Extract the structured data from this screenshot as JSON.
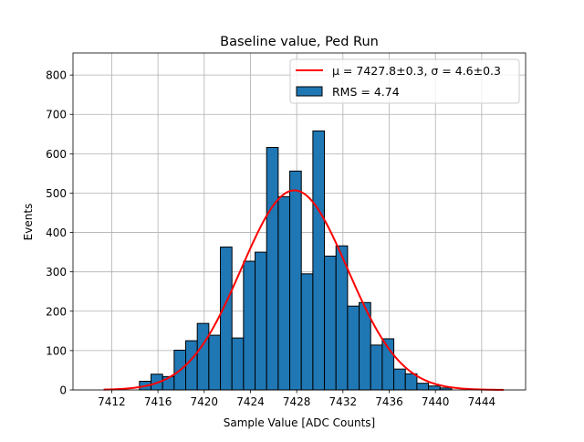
{
  "chart_data": {
    "type": "bar",
    "title": "Baseline value, Ped Run",
    "xlabel": "Sample Value [ADC Counts]",
    "ylabel": "Events",
    "xlim": [
      7408.65,
      7447.8
    ],
    "ylim": [
      0,
      856
    ],
    "grid": true,
    "xticks": [
      7412,
      7416,
      7420,
      7424,
      7428,
      7432,
      7436,
      7440,
      7444
    ],
    "yticks": [
      0,
      100,
      200,
      300,
      400,
      500,
      600,
      700,
      800
    ],
    "bin_start": 7414.4,
    "bin_width": 1.0,
    "values": [
      22,
      40,
      34,
      101,
      125,
      169,
      139,
      363,
      132,
      327,
      350,
      616,
      491,
      556,
      295,
      658,
      340,
      366,
      213,
      222,
      114,
      130,
      53,
      41,
      17,
      10,
      5
    ],
    "fit": {
      "mu": 7427.8,
      "sigma": 4.6,
      "amplitude": 507,
      "x_range": [
        7411.3,
        7445.9
      ]
    },
    "legend_location": "top-right",
    "legend": {
      "fit_label": "μ = 7427.8±0.3, σ = 4.6±0.3",
      "hist_label": "RMS = 4.74"
    },
    "colors": {
      "bar": "#1f77b4",
      "bar_edge": "#000000",
      "fit": "#ff0000",
      "grid": "#b0b0b0"
    }
  }
}
